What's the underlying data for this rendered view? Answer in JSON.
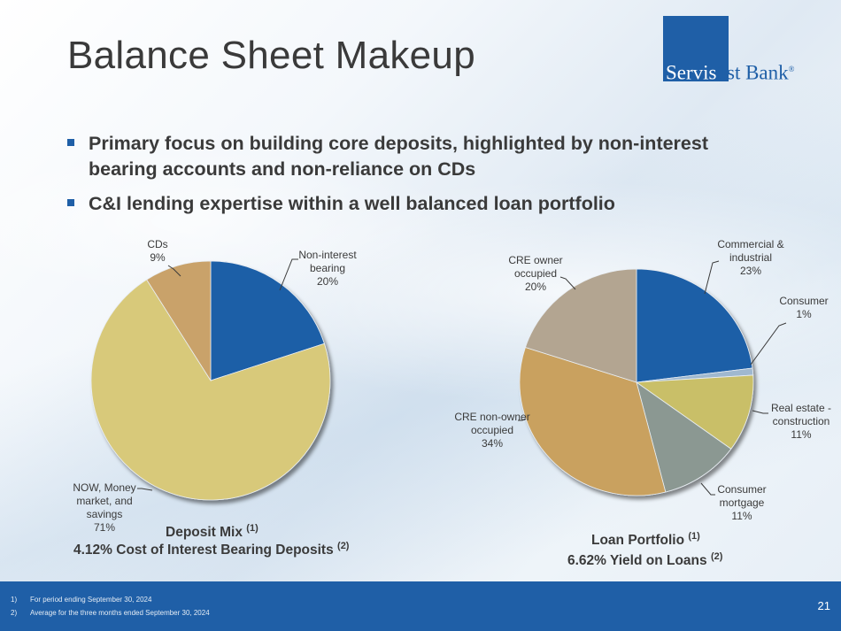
{
  "slide": {
    "title": "Balance Sheet Makeup",
    "page_number": "21"
  },
  "logo": {
    "part1": "Servis",
    "part2": "1st Bank",
    "mark": "®"
  },
  "bullets": [
    "Primary focus on building core deposits, highlighted by non-interest bearing accounts and non-reliance on CDs",
    "C&I lending expertise within a well balanced loan portfolio"
  ],
  "captions": {
    "deposit_title": "Deposit Mix",
    "deposit_title_sup": "(1)",
    "deposit_sub": "4.12% Cost of Interest Bearing Deposits",
    "deposit_sub_sup": "(2)",
    "loan_title": "Loan Portfolio",
    "loan_title_sup": "(1)",
    "loan_sub": "6.62% Yield on Loans",
    "loan_sub_sup": "(2)"
  },
  "footnotes": [
    {
      "num": "1)",
      "text": "For period ending September 30, 2024"
    },
    {
      "num": "2)",
      "text": "Average for the three months ended September 30, 2024"
    }
  ],
  "colors": {
    "brand": "#1f5fa7",
    "nib": "#1f5fa7",
    "now": "#d8c97a",
    "cds": "#c9a26a",
    "ci": "#1f5fa7",
    "consumer": "#9fb8cf",
    "re_construction": "#c9bf68",
    "consumer_mortgage": "#8b9892",
    "cre_non_owner": "#c9a15e",
    "cre_owner": "#b3a591"
  },
  "chart_data": [
    {
      "type": "pie",
      "title": "Deposit Mix",
      "slices": [
        {
          "label": [
            "Non-interest",
            "bearing"
          ],
          "pct": "20%",
          "value": 20,
          "color": "#1f5fa7"
        },
        {
          "label": [
            "NOW, Money",
            "market, and",
            "savings"
          ],
          "pct": "71%",
          "value": 71,
          "color": "#d8c97a"
        },
        {
          "label": [
            "CDs"
          ],
          "pct": "9%",
          "value": 9,
          "color": "#c9a26a"
        }
      ]
    },
    {
      "type": "pie",
      "title": "Loan Portfolio",
      "slices": [
        {
          "label": [
            "Commercial &",
            "industrial"
          ],
          "pct": "23%",
          "value": 23,
          "color": "#1f5fa7"
        },
        {
          "label": [
            "Consumer"
          ],
          "pct": "1%",
          "value": 1,
          "color": "#9fb8cf"
        },
        {
          "label": [
            "Real estate -",
            "construction"
          ],
          "pct": "11%",
          "value": 11,
          "color": "#c9bf68"
        },
        {
          "label": [
            "Consumer",
            "mortgage"
          ],
          "pct": "11%",
          "value": 11,
          "color": "#8b9892"
        },
        {
          "label": [
            "CRE non-owner",
            "occupied"
          ],
          "pct": "34%",
          "value": 34,
          "color": "#c9a15e"
        },
        {
          "label": [
            "CRE owner",
            "occupied"
          ],
          "pct": "20%",
          "value": 20,
          "color": "#b3a591"
        }
      ]
    }
  ]
}
